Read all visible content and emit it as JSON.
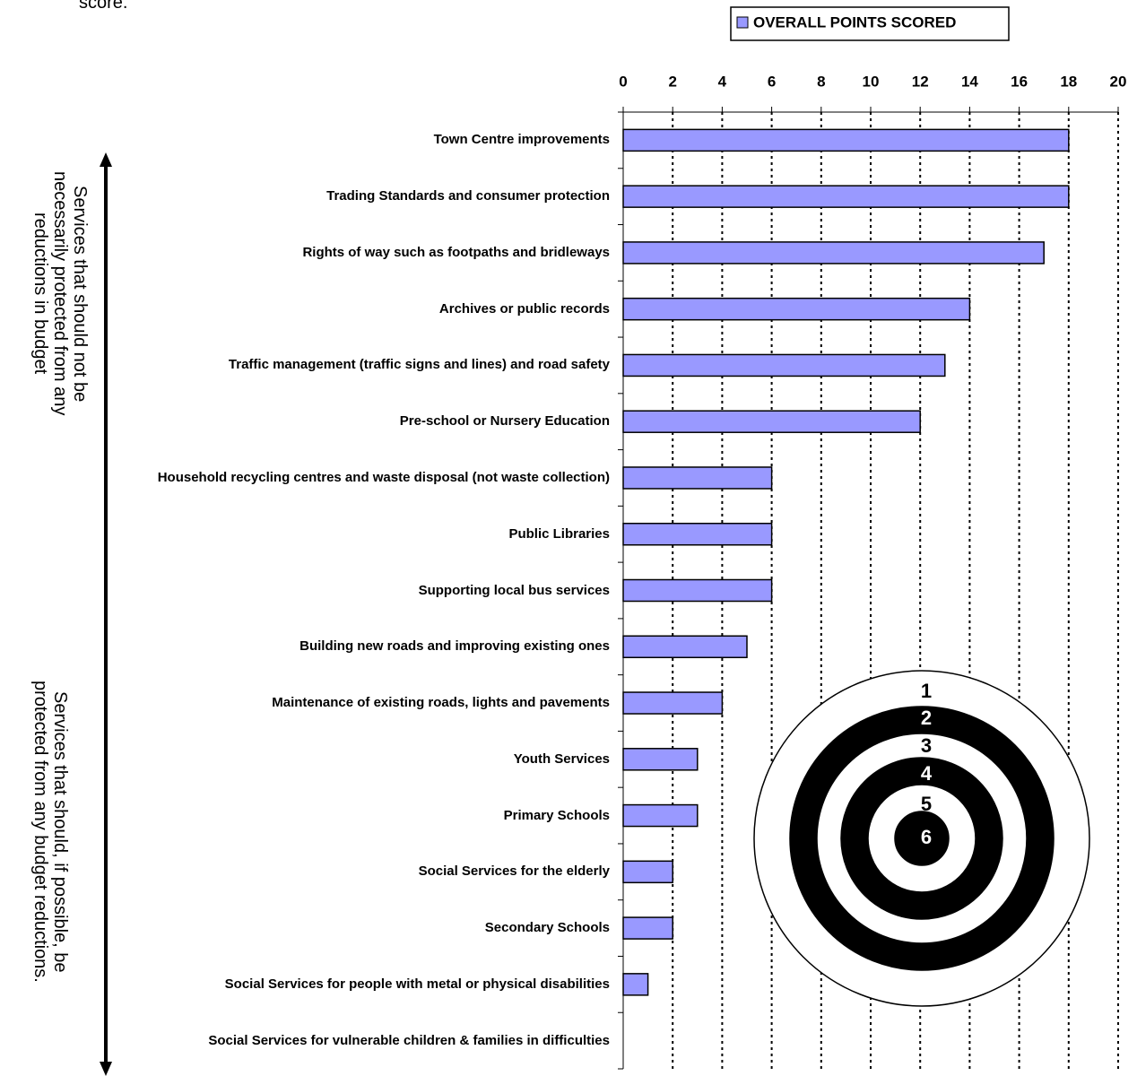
{
  "chart_data": {
    "type": "bar",
    "orientation": "horizontal",
    "note": "score.",
    "categories": [
      "Town Centre improvements",
      "Trading Standards and consumer protection",
      "Rights of way such as footpaths and bridleways",
      "Archives or public records",
      "Traffic management (traffic signs and lines) and road safety",
      "Pre-school or Nursery Education",
      "Household recycling centres and waste disposal (not waste collection)",
      "Public Libraries",
      "Supporting local bus services",
      "Building new roads and improving existing ones",
      "Maintenance of existing roads, lights and pavements",
      "Youth Services",
      "Primary Schools",
      "Social Services for the elderly",
      "Secondary Schools",
      "Social Services for people with metal or physical disabilities",
      "Social Services for vulnerable children & families in difficulties"
    ],
    "series": [
      {
        "name": "OVERALL POINTS SCORED",
        "color": "#9999ff",
        "values": [
          18,
          18,
          17,
          14,
          13,
          12,
          6,
          6,
          6,
          5,
          4,
          3,
          3,
          2,
          2,
          1,
          0
        ]
      }
    ],
    "xlim": [
      0,
      20
    ],
    "xticks": [
      0,
      2,
      4,
      6,
      8,
      10,
      12,
      14,
      16,
      18,
      20
    ],
    "grid": true,
    "legend": "top-right",
    "annotations": [
      "Services that should not be necessarily protected from any reductions in budget",
      "Services that should, if possible, be protected from any budget reductions."
    ],
    "target_labels": [
      1,
      2,
      3,
      4,
      5,
      6
    ]
  }
}
